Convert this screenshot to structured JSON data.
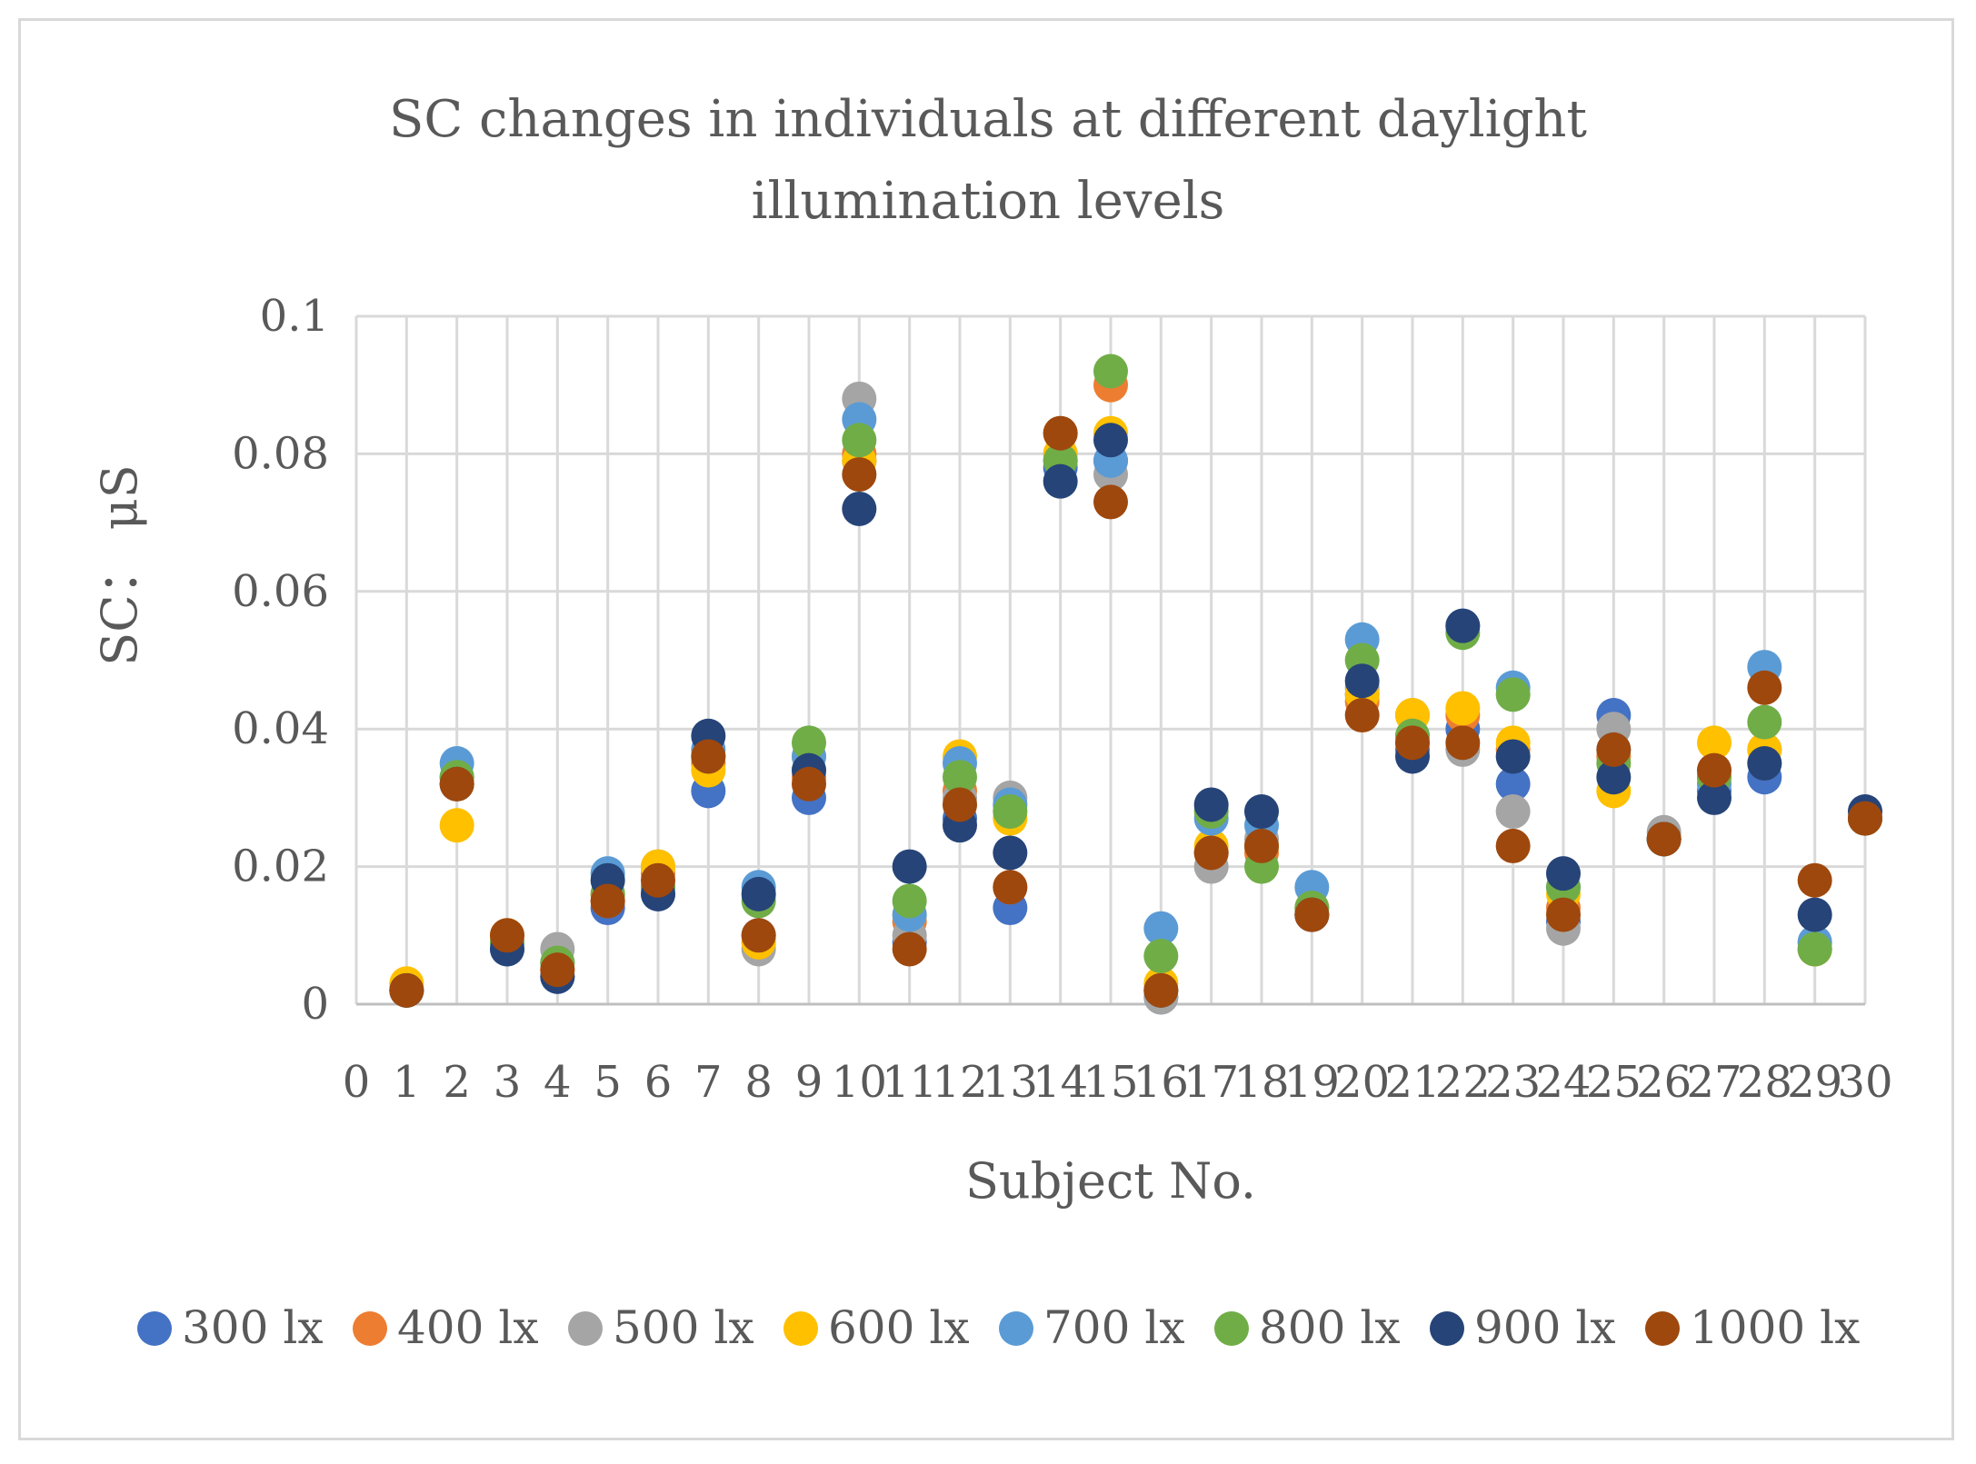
{
  "chart_data": {
    "type": "scatter",
    "title_lines": [
      "SC changes in individuals at different daylight",
      "illumination levels"
    ],
    "xlabel": "Subject No.",
    "ylabel": "SC： μS",
    "xlim": [
      0,
      30
    ],
    "ylim": [
      0,
      0.1
    ],
    "x_ticks": [
      "0",
      "1",
      "2",
      "3",
      "4",
      "5",
      "6",
      "7",
      "8",
      "9",
      "10",
      "11",
      "12",
      "13",
      "14",
      "15",
      "16",
      "17",
      "18",
      "19",
      "20",
      "21",
      "22",
      "23",
      "24",
      "25",
      "26",
      "27",
      "28",
      "29",
      "30"
    ],
    "y_ticks": [
      "0",
      "0.02",
      "0.04",
      "0.06",
      "0.08",
      "0.1"
    ],
    "x": [
      1,
      2,
      3,
      4,
      5,
      6,
      7,
      8,
      9,
      10,
      11,
      12,
      13,
      14,
      15,
      16,
      17,
      18,
      19,
      20,
      21,
      22,
      23,
      24,
      25,
      26,
      27,
      28,
      29,
      30
    ],
    "series": [
      {
        "name": "300 lx",
        "color": "#4472c4",
        "values": [
          0.002,
          0.033,
          0.008,
          0.004,
          0.014,
          0.016,
          0.031,
          0.01,
          0.03,
          0.079,
          0.009,
          0.027,
          0.014,
          0.078,
          0.079,
          0.001,
          0.022,
          0.023,
          0.013,
          0.045,
          0.037,
          0.04,
          0.032,
          0.012,
          0.042,
          0.024,
          0.031,
          0.033,
          0.008,
          0.027
        ]
      },
      {
        "name": "400 lx",
        "color": "#ed7d31",
        "values": [
          0.002,
          0.032,
          0.01,
          0.005,
          0.015,
          0.019,
          0.035,
          0.009,
          0.033,
          0.08,
          0.012,
          0.031,
          0.017,
          0.083,
          0.09,
          0.002,
          0.022,
          0.022,
          0.013,
          0.044,
          0.038,
          0.042,
          0.037,
          0.014,
          0.036,
          0.024,
          0.033,
          0.037,
          0.008,
          0.027
        ]
      },
      {
        "name": "500 lx",
        "color": "#a5a5a5",
        "values": [
          0.002,
          0.033,
          0.009,
          0.008,
          0.016,
          0.02,
          0.036,
          0.008,
          0.034,
          0.088,
          0.01,
          0.03,
          0.03,
          0.08,
          0.077,
          0.001,
          0.02,
          0.024,
          0.014,
          0.046,
          0.042,
          0.037,
          0.028,
          0.011,
          0.04,
          0.025,
          0.034,
          0.035,
          0.009,
          0.027
        ]
      },
      {
        "name": "600 lx",
        "color": "#ffc000",
        "values": [
          0.003,
          0.026,
          0.01,
          0.006,
          0.016,
          0.02,
          0.034,
          0.009,
          0.036,
          0.079,
          0.013,
          0.036,
          0.027,
          0.08,
          0.083,
          0.003,
          0.023,
          0.023,
          0.014,
          0.045,
          0.042,
          0.043,
          0.038,
          0.016,
          0.031,
          0.024,
          0.038,
          0.037,
          0.008,
          0.027
        ]
      },
      {
        "name": "700 lx",
        "color": "#5b9bd5",
        "values": [
          0.002,
          0.035,
          0.009,
          0.006,
          0.019,
          0.017,
          0.037,
          0.017,
          0.036,
          0.085,
          0.013,
          0.035,
          0.029,
          0.079,
          0.079,
          0.011,
          0.027,
          0.026,
          0.017,
          0.053,
          0.039,
          0.055,
          0.046,
          0.017,
          0.037,
          0.024,
          0.032,
          0.049,
          0.009,
          0.027
        ]
      },
      {
        "name": "800 lx",
        "color": "#70ad47",
        "values": [
          0.002,
          0.033,
          0.009,
          0.006,
          0.016,
          0.017,
          0.036,
          0.015,
          0.038,
          0.082,
          0.015,
          0.033,
          0.028,
          0.079,
          0.092,
          0.007,
          0.028,
          0.02,
          0.014,
          0.05,
          0.039,
          0.054,
          0.045,
          0.017,
          0.035,
          0.024,
          0.033,
          0.041,
          0.008,
          0.027
        ]
      },
      {
        "name": "900 lx",
        "color": "#264478",
        "values": [
          0.002,
          0.032,
          0.008,
          0.004,
          0.018,
          0.016,
          0.039,
          0.016,
          0.034,
          0.072,
          0.02,
          0.026,
          0.022,
          0.076,
          0.082,
          0.002,
          0.029,
          0.028,
          0.013,
          0.047,
          0.036,
          0.055,
          0.036,
          0.019,
          0.033,
          0.024,
          0.03,
          0.035,
          0.013,
          0.028
        ]
      },
      {
        "name": "1000 lx",
        "color": "#9e480e",
        "values": [
          0.002,
          0.032,
          0.01,
          0.005,
          0.015,
          0.018,
          0.036,
          0.01,
          0.032,
          0.077,
          0.008,
          0.029,
          0.017,
          0.083,
          0.073,
          0.002,
          0.022,
          0.023,
          0.013,
          0.042,
          0.038,
          0.038,
          0.023,
          0.013,
          0.037,
          0.024,
          0.034,
          0.046,
          0.018,
          0.027
        ]
      }
    ]
  }
}
